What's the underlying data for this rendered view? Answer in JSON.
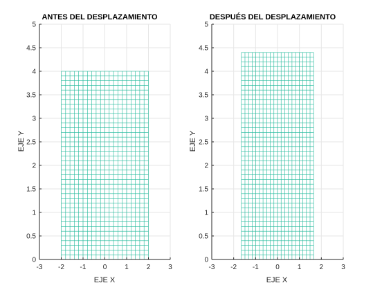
{
  "chart_data": [
    {
      "type": "mesh",
      "title": "ANTES DEL DESPLAZAMIENTO",
      "xlabel": "EJE X",
      "ylabel": "EJE Y",
      "xlim": [
        -3,
        3
      ],
      "ylim": [
        0,
        5
      ],
      "xticks": [
        -3,
        -2,
        -1,
        0,
        1,
        2,
        3
      ],
      "yticks": [
        0,
        0.5,
        1,
        1.5,
        2,
        2.5,
        3,
        3.5,
        4,
        4.5,
        5
      ],
      "xtick_labels": [
        "-3",
        "-2",
        "-1",
        "0",
        "1",
        "2",
        "3"
      ],
      "ytick_labels": [
        "0",
        "0.5",
        "1",
        "1.5",
        "2",
        "2.5",
        "3",
        "3.5",
        "4",
        "4.5",
        "5"
      ],
      "grid": true,
      "mesh": {
        "x_range": [
          -2,
          2
        ],
        "y_range": [
          0,
          4
        ],
        "nx": 20,
        "ny": 40,
        "color": "#1fb99a"
      }
    },
    {
      "type": "mesh",
      "title": "DESPUÉS DEL DESPLAZAMIENTO",
      "xlabel": "EJE X",
      "ylabel": "EJE Y",
      "xlim": [
        -3,
        3
      ],
      "ylim": [
        0,
        5
      ],
      "xticks": [
        -3,
        -2,
        -1,
        0,
        1,
        2,
        3
      ],
      "yticks": [
        0,
        0.5,
        1,
        1.5,
        2,
        2.5,
        3,
        3.5,
        4,
        4.5,
        5
      ],
      "xtick_labels": [
        "-3",
        "-2",
        "-1",
        "0",
        "1",
        "2",
        "3"
      ],
      "ytick_labels": [
        "0",
        "0.5",
        "1",
        "1.5",
        "2",
        "2.5",
        "3",
        "3.5",
        "4",
        "4.5",
        "5"
      ],
      "grid": true,
      "mesh": {
        "x_range": [
          -1.65,
          1.65
        ],
        "y_range": [
          0,
          4.4
        ],
        "nx": 20,
        "ny": 44,
        "color": "#1fb99a"
      }
    }
  ]
}
